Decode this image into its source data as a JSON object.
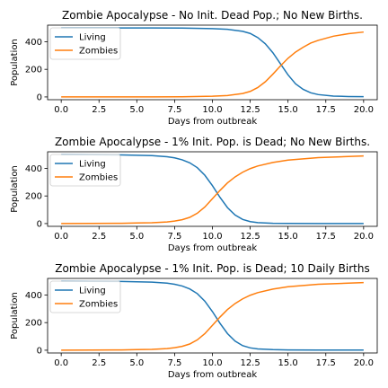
{
  "chart_data": [
    {
      "type": "line",
      "title": "Zombie Apocalypse - No Init. Dead Pop.; No New Births.",
      "xlabel": "Days from outbreak",
      "ylabel": "Population",
      "xlim": [
        -0.9,
        20.9
      ],
      "ylim": [
        -20,
        520
      ],
      "xticks": [
        0,
        2.5,
        5,
        7.5,
        10,
        12.5,
        15,
        17.5,
        20
      ],
      "xtick_labels": [
        "0.0",
        "2.5",
        "5.0",
        "7.5",
        "10.0",
        "12.5",
        "15.0",
        "17.5",
        "20.0"
      ],
      "yticks": [
        0,
        200,
        400
      ],
      "ytick_labels": [
        "0",
        "200",
        "400"
      ],
      "legend": "upper-left",
      "series": [
        {
          "name": "Living",
          "color": "#1f77b4",
          "x": [
            0,
            2,
            4,
            6,
            8,
            10,
            11,
            12,
            12.5,
            13,
            13.5,
            14,
            14.5,
            15,
            15.5,
            16,
            16.5,
            17,
            18,
            19,
            20
          ],
          "y": [
            500,
            500,
            500,
            500,
            499,
            495,
            490,
            475,
            460,
            430,
            385,
            320,
            240,
            160,
            95,
            55,
            30,
            17,
            6,
            3,
            2
          ]
        },
        {
          "name": "Zombies",
          "color": "#ff7f0e",
          "x": [
            0,
            2,
            4,
            6,
            8,
            10,
            11,
            12,
            12.5,
            13,
            13.5,
            14,
            14.5,
            15,
            15.5,
            16,
            16.5,
            17,
            18,
            19,
            20
          ],
          "y": [
            0,
            0,
            0,
            0,
            1,
            5,
            10,
            25,
            40,
            68,
            110,
            165,
            225,
            280,
            325,
            360,
            390,
            410,
            440,
            458,
            470
          ]
        }
      ]
    },
    {
      "type": "line",
      "title": "Zombie Apocalypse - 1% Init. Pop. is Dead; No New Births.",
      "xlabel": "Days from outbreak",
      "ylabel": "Population",
      "xlim": [
        -0.9,
        20.9
      ],
      "ylim": [
        -20,
        520
      ],
      "xticks": [
        0,
        2.5,
        5,
        7.5,
        10,
        12.5,
        15,
        17.5,
        20
      ],
      "xtick_labels": [
        "0.0",
        "2.5",
        "5.0",
        "7.5",
        "10.0",
        "12.5",
        "15.0",
        "17.5",
        "20.0"
      ],
      "yticks": [
        0,
        200,
        400
      ],
      "ytick_labels": [
        "0",
        "200",
        "400"
      ],
      "legend": "upper-left",
      "series": [
        {
          "name": "Living",
          "color": "#1f77b4",
          "x": [
            0,
            2,
            4,
            5,
            6,
            7,
            7.5,
            8,
            8.5,
            9,
            9.5,
            10,
            10.5,
            11,
            11.5,
            12,
            12.5,
            13,
            14,
            15,
            17,
            20
          ],
          "y": [
            500,
            499,
            497,
            495,
            492,
            484,
            476,
            462,
            440,
            405,
            350,
            275,
            190,
            115,
            62,
            30,
            14,
            7,
            2,
            1,
            0,
            0
          ]
        },
        {
          "name": "Zombies",
          "color": "#ff7f0e",
          "x": [
            0,
            2,
            4,
            5,
            6,
            7,
            7.5,
            8,
            8.5,
            9,
            9.5,
            10,
            10.5,
            11,
            11.5,
            12,
            12.5,
            13,
            14,
            15,
            17,
            20
          ],
          "y": [
            0,
            1,
            2,
            4,
            6,
            12,
            18,
            28,
            45,
            75,
            120,
            180,
            240,
            295,
            338,
            372,
            398,
            417,
            443,
            460,
            478,
            490
          ]
        }
      ]
    },
    {
      "type": "line",
      "title": "Zombie Apocalypse - 1% Init. Pop. is Dead; 10 Daily Births",
      "xlabel": "Days from outbreak",
      "ylabel": "Population",
      "xlim": [
        -0.9,
        20.9
      ],
      "ylim": [
        -20,
        520
      ],
      "xticks": [
        0,
        2.5,
        5,
        7.5,
        10,
        12.5,
        15,
        17.5,
        20
      ],
      "xtick_labels": [
        "0.0",
        "2.5",
        "5.0",
        "7.5",
        "10.0",
        "12.5",
        "15.0",
        "17.5",
        "20.0"
      ],
      "yticks": [
        0,
        200,
        400
      ],
      "ytick_labels": [
        "0",
        "200",
        "400"
      ],
      "legend": "upper-left",
      "series": [
        {
          "name": "Living",
          "color": "#1f77b4",
          "x": [
            0,
            2,
            4,
            5,
            6,
            7,
            7.5,
            8,
            8.5,
            9,
            9.5,
            10,
            10.5,
            11,
            11.5,
            12,
            12.5,
            13,
            14,
            15,
            17,
            20
          ],
          "y": [
            500,
            499,
            498,
            496,
            493,
            486,
            478,
            465,
            444,
            410,
            355,
            280,
            195,
            120,
            66,
            33,
            17,
            9,
            4,
            2,
            1,
            1
          ]
        },
        {
          "name": "Zombies",
          "color": "#ff7f0e",
          "x": [
            0,
            2,
            4,
            5,
            6,
            7,
            7.5,
            8,
            8.5,
            9,
            9.5,
            10,
            10.5,
            11,
            11.5,
            12,
            12.5,
            13,
            14,
            15,
            17,
            20
          ],
          "y": [
            0,
            1,
            2,
            4,
            6,
            12,
            18,
            28,
            45,
            75,
            120,
            180,
            240,
            295,
            338,
            372,
            398,
            417,
            443,
            460,
            478,
            490
          ]
        }
      ]
    }
  ]
}
